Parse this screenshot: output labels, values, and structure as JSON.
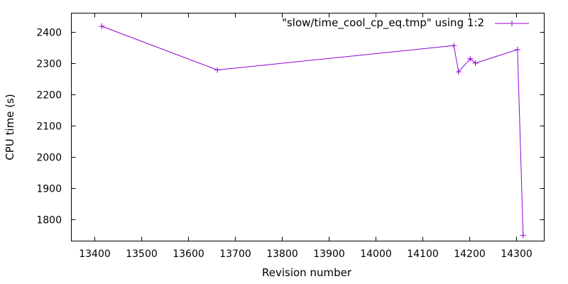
{
  "chart_data": {
    "type": "line",
    "xlabel": "Revision number",
    "ylabel": "CPU time (s)",
    "xlim": [
      13350,
      14360
    ],
    "ylim": [
      1730,
      2460
    ],
    "x_ticks": [
      13400,
      13500,
      13600,
      13700,
      13800,
      13900,
      14000,
      14100,
      14200,
      14300
    ],
    "y_ticks": [
      1800,
      1900,
      2000,
      2100,
      2200,
      2300,
      2400
    ],
    "grid": false,
    "legend_position": "top-right",
    "series": [
      {
        "name": "\"slow/time_cool_cp_eq.tmp\" using 1:2",
        "color": "#9400d3",
        "marker": "plus",
        "x": [
          13415,
          13662,
          14167,
          14177,
          14202,
          14213,
          14303,
          14315
        ],
        "y": [
          2418,
          2278,
          2356,
          2272,
          2314,
          2300,
          2343,
          1748
        ]
      }
    ]
  }
}
